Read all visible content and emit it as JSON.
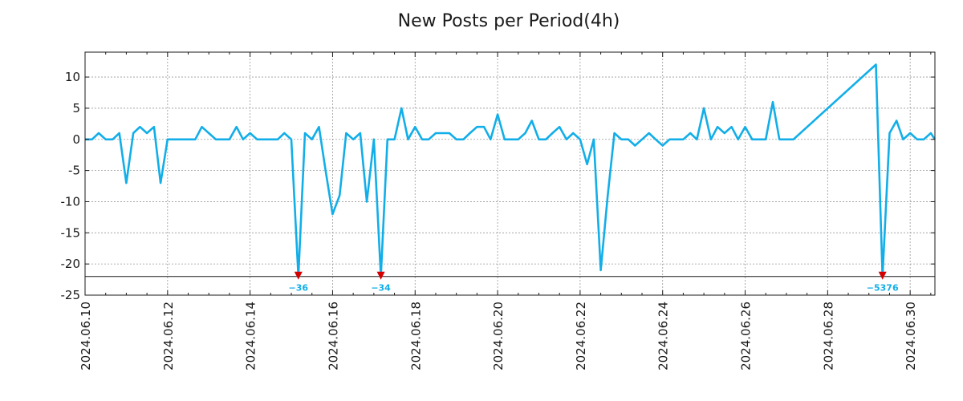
{
  "chart_data": {
    "type": "line",
    "title": "New Posts per Period(4h)",
    "xlabel": "",
    "ylabel": "",
    "ylim": [
      -25,
      14
    ],
    "xlim": [
      0,
      20.6
    ],
    "grid": true,
    "yticks": [
      10,
      5,
      0,
      -5,
      -10,
      -15,
      -20,
      -25
    ],
    "xticks": [
      {
        "x": 0,
        "label": "2024.06.10"
      },
      {
        "x": 2,
        "label": "2024.06.12"
      },
      {
        "x": 4,
        "label": "2024.06.14"
      },
      {
        "x": 6,
        "label": "2024.06.16"
      },
      {
        "x": 8,
        "label": "2024.06.18"
      },
      {
        "x": 10,
        "label": "2024.06.20"
      },
      {
        "x": 12,
        "label": "2024.06.22"
      },
      {
        "x": 14,
        "label": "2024.06.24"
      },
      {
        "x": 16,
        "label": "2024.06.26"
      },
      {
        "x": 18,
        "label": "2024.06.28"
      },
      {
        "x": 20,
        "label": "2024.06.30"
      }
    ],
    "clip_floor": -22,
    "series": [
      {
        "name": "New Posts",
        "color": "#12aee8",
        "points": [
          [
            0.0,
            0
          ],
          [
            0.17,
            0
          ],
          [
            0.33,
            1
          ],
          [
            0.5,
            0
          ],
          [
            0.67,
            0
          ],
          [
            0.83,
            1
          ],
          [
            1.0,
            -7
          ],
          [
            1.17,
            1
          ],
          [
            1.33,
            2
          ],
          [
            1.5,
            1
          ],
          [
            1.67,
            2
          ],
          [
            1.83,
            -7
          ],
          [
            2.0,
            0
          ],
          [
            2.17,
            0
          ],
          [
            2.33,
            0
          ],
          [
            2.5,
            0
          ],
          [
            2.67,
            0
          ],
          [
            2.83,
            2
          ],
          [
            3.0,
            1
          ],
          [
            3.17,
            0
          ],
          [
            3.33,
            0
          ],
          [
            3.5,
            0
          ],
          [
            3.67,
            2
          ],
          [
            3.83,
            0
          ],
          [
            4.0,
            1
          ],
          [
            4.17,
            0
          ],
          [
            4.33,
            0
          ],
          [
            4.5,
            0
          ],
          [
            4.67,
            0
          ],
          [
            4.83,
            1
          ],
          [
            5.0,
            0
          ],
          [
            5.17,
            -22
          ],
          [
            5.33,
            1
          ],
          [
            5.5,
            0
          ],
          [
            5.67,
            2
          ],
          [
            5.83,
            -5
          ],
          [
            6.0,
            -12
          ],
          [
            6.17,
            -9
          ],
          [
            6.33,
            1
          ],
          [
            6.5,
            0
          ],
          [
            6.67,
            1
          ],
          [
            6.83,
            -10
          ],
          [
            7.0,
            0
          ],
          [
            7.17,
            -22
          ],
          [
            7.33,
            0
          ],
          [
            7.5,
            0
          ],
          [
            7.67,
            5
          ],
          [
            7.83,
            0
          ],
          [
            8.0,
            2
          ],
          [
            8.17,
            0
          ],
          [
            8.33,
            0
          ],
          [
            8.5,
            1
          ],
          [
            8.67,
            1
          ],
          [
            8.83,
            1
          ],
          [
            9.0,
            0
          ],
          [
            9.17,
            0
          ],
          [
            9.33,
            1
          ],
          [
            9.5,
            2
          ],
          [
            9.67,
            2
          ],
          [
            9.83,
            0
          ],
          [
            10.0,
            4
          ],
          [
            10.17,
            0
          ],
          [
            10.33,
            0
          ],
          [
            10.5,
            0
          ],
          [
            10.67,
            1
          ],
          [
            10.83,
            3
          ],
          [
            11.0,
            0
          ],
          [
            11.17,
            0
          ],
          [
            11.33,
            1
          ],
          [
            11.5,
            2
          ],
          [
            11.67,
            0
          ],
          [
            11.83,
            1
          ],
          [
            12.0,
            0
          ],
          [
            12.17,
            -4
          ],
          [
            12.33,
            0
          ],
          [
            12.5,
            -21
          ],
          [
            12.67,
            -9
          ],
          [
            12.83,
            1
          ],
          [
            13.0,
            0
          ],
          [
            13.17,
            0
          ],
          [
            13.33,
            -1
          ],
          [
            13.5,
            0
          ],
          [
            13.67,
            1
          ],
          [
            13.83,
            0
          ],
          [
            14.0,
            -1
          ],
          [
            14.17,
            0
          ],
          [
            14.33,
            0
          ],
          [
            14.5,
            0
          ],
          [
            14.67,
            1
          ],
          [
            14.83,
            0
          ],
          [
            15.0,
            5
          ],
          [
            15.17,
            0
          ],
          [
            15.33,
            2
          ],
          [
            15.5,
            1
          ],
          [
            15.67,
            2
          ],
          [
            15.83,
            0
          ],
          [
            16.0,
            2
          ],
          [
            16.17,
            0
          ],
          [
            16.33,
            0
          ],
          [
            16.5,
            0
          ],
          [
            16.67,
            6
          ],
          [
            16.83,
            0
          ],
          [
            17.0,
            0
          ],
          [
            17.17,
            0
          ],
          [
            19.17,
            12
          ],
          [
            19.33,
            -22
          ],
          [
            19.5,
            1
          ],
          [
            19.67,
            3
          ],
          [
            19.83,
            0
          ],
          [
            20.0,
            1
          ],
          [
            20.17,
            0
          ],
          [
            20.33,
            0
          ],
          [
            20.5,
            1
          ],
          [
            20.6,
            0
          ]
        ]
      }
    ],
    "clipped_markers": [
      {
        "x": 5.17,
        "label": "−36"
      },
      {
        "x": 7.17,
        "label": "−34"
      },
      {
        "x": 19.33,
        "label": "−5376"
      }
    ]
  },
  "colors": {
    "line": "#12aee8",
    "marker": "#d40000",
    "marker_label": "#12aee8",
    "grid": "#999999",
    "axis": "#1a1a1a"
  }
}
